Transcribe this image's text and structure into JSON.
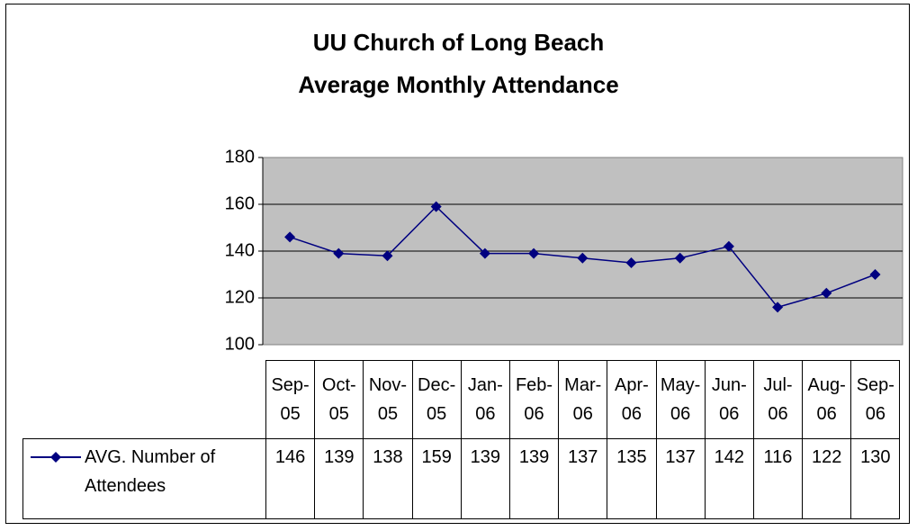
{
  "chart_data": {
    "type": "line",
    "title": "UU Church of Long Beach\nAverage Monthly Attendance",
    "categories": [
      "Sep-05",
      "Oct-05",
      "Nov-05",
      "Dec-05",
      "Jan-06",
      "Feb-06",
      "Mar-06",
      "Apr-06",
      "May-06",
      "Jun-06",
      "Jul-06",
      "Aug-06",
      "Sep-06"
    ],
    "series": [
      {
        "name": "AVG. Number of Attendees",
        "color": "#000080",
        "values": [
          146,
          139,
          138,
          159,
          139,
          139,
          137,
          135,
          137,
          142,
          116,
          122,
          130
        ]
      }
    ],
    "ylim": [
      100,
      180
    ],
    "yticks": [
      100,
      120,
      140,
      160,
      180
    ],
    "grid": true,
    "plot_background": "#c0c0c0"
  }
}
